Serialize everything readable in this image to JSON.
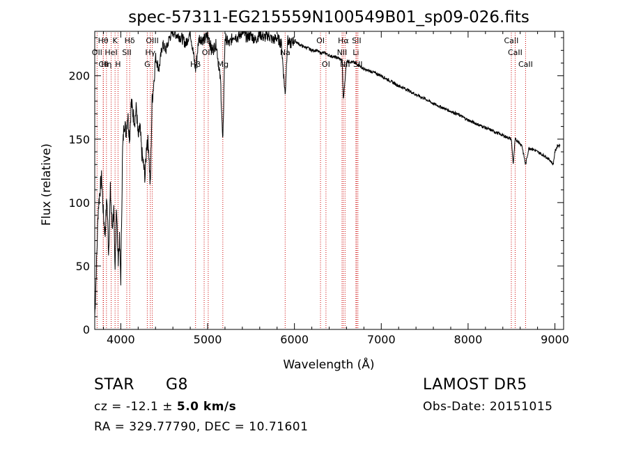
{
  "chart_data": {
    "type": "line",
    "title": "spec-57311-EG215559N100549B01_sp09-026.fits",
    "xlabel": "Wavelength (Å)",
    "ylabel": "Flux (relative)",
    "xlim": [
      3700,
      9100
    ],
    "ylim": [
      0,
      235
    ],
    "xticks": [
      4000,
      5000,
      6000,
      7000,
      8000,
      9000
    ],
    "yticks": [
      0,
      50,
      100,
      150,
      200
    ],
    "grid": false,
    "line_color": "#000000",
    "marker_color": "#cc0000",
    "spectrum": {
      "x": [
        3700,
        3720,
        3740,
        3760,
        3780,
        3800,
        3820,
        3840,
        3860,
        3880,
        3900,
        3920,
        3933,
        3950,
        3968,
        3985,
        4000,
        4020,
        4040,
        4060,
        4080,
        4102,
        4120,
        4140,
        4160,
        4180,
        4200,
        4220,
        4240,
        4260,
        4280,
        4300,
        4320,
        4340,
        4360,
        4380,
        4400,
        4440,
        4480,
        4520,
        4560,
        4600,
        4650,
        4700,
        4750,
        4800,
        4861,
        4900,
        4950,
        5000,
        5050,
        5100,
        5150,
        5175,
        5200,
        5250,
        5300,
        5350,
        5400,
        5450,
        5500,
        5550,
        5600,
        5650,
        5700,
        5750,
        5800,
        5850,
        5893,
        5920,
        5950,
        6000,
        6050,
        6100,
        6150,
        6200,
        6250,
        6300,
        6350,
        6400,
        6450,
        6500,
        6550,
        6563,
        6600,
        6650,
        6700,
        6750,
        6800,
        6900,
        7000,
        7100,
        7200,
        7300,
        7400,
        7500,
        7600,
        7700,
        7800,
        7900,
        8000,
        8100,
        8200,
        8300,
        8400,
        8498,
        8520,
        8542,
        8580,
        8620,
        8662,
        8700,
        8750,
        8800,
        8850,
        8900,
        8950,
        8980,
        9000,
        9030,
        9060
      ],
      "y": [
        10,
        50,
        95,
        110,
        120,
        90,
        75,
        105,
        60,
        110,
        80,
        95,
        40,
        100,
        55,
        70,
        40,
        140,
        165,
        155,
        170,
        150,
        180,
        170,
        165,
        175,
        150,
        160,
        140,
        130,
        120,
        150,
        145,
        110,
        180,
        195,
        215,
        205,
        225,
        220,
        230,
        235,
        232,
        230,
        225,
        235,
        205,
        230,
        228,
        232,
        220,
        225,
        195,
        145,
        230,
        225,
        232,
        230,
        235,
        230,
        232,
        228,
        233,
        230,
        232,
        228,
        230,
        225,
        185,
        228,
        225,
        228,
        225,
        223,
        222,
        220,
        220,
        218,
        218,
        216,
        215,
        214,
        212,
        180,
        212,
        211,
        210,
        208,
        205,
        203,
        200,
        196,
        192,
        189,
        185,
        182,
        178,
        175,
        172,
        169,
        165,
        162,
        159,
        156,
        153,
        150,
        130,
        150,
        148,
        145,
        130,
        143,
        142,
        140,
        138,
        136,
        133,
        130,
        140,
        145,
        145
      ]
    },
    "line_markers": [
      {
        "name": "H&#952;",
        "x": 3797,
        "row": 0
      },
      {
        "name": "K",
        "x": 3934,
        "row": 0
      },
      {
        "name": "H&#948;",
        "x": 4102,
        "row": 0
      },
      {
        "name": "OII",
        "x": 3727,
        "row": 1
      },
      {
        "name": "HeI",
        "x": 3889,
        "row": 1
      },
      {
        "name": "SII",
        "x": 4069,
        "row": 1
      },
      {
        "name": "OIII",
        "x": 4363,
        "row": 0
      },
      {
        "name": "H&#947;",
        "x": 4340,
        "row": 1
      },
      {
        "name": "G",
        "x": 4305,
        "row": 2
      },
      {
        "name": "CII",
        "x": 3800,
        "row": 2
      },
      {
        "name": "H&#951;",
        "x": 3835,
        "row": 2
      },
      {
        "name": "H",
        "x": 3968,
        "row": 2
      },
      {
        "name": "OIII",
        "x": 4960,
        "row": 0
      },
      {
        "name": "OIII",
        "x": 5007,
        "row": 1
      },
      {
        "name": "H&#946;",
        "x": 4861,
        "row": 2
      },
      {
        "name": "Mg",
        "x": 5175,
        "row": 2
      },
      {
        "name": "Na",
        "x": 5893,
        "row": 1
      },
      {
        "name": "OI",
        "x": 6300,
        "row": 0
      },
      {
        "name": "OI",
        "x": 6363,
        "row": 2
      },
      {
        "name": "H&#945;",
        "x": 6563,
        "row": 0
      },
      {
        "name": "SII",
        "x": 6716,
        "row": 0
      },
      {
        "name": "NII",
        "x": 6548,
        "row": 1
      },
      {
        "name": "Li",
        "x": 6708,
        "row": 1
      },
      {
        "name": "NII",
        "x": 6583,
        "row": 2
      },
      {
        "name": "SII",
        "x": 6731,
        "row": 2
      },
      {
        "name": "CaII",
        "x": 8498,
        "row": 0
      },
      {
        "name": "CaII",
        "x": 8542,
        "row": 1
      },
      {
        "name": "CaII",
        "x": 8662,
        "row": 2
      }
    ]
  },
  "info": {
    "object_type": "STAR",
    "subclass": "G8",
    "survey": "LAMOST DR5",
    "cz_prefix": "cz = -12.1 ± ",
    "cz_value": "5.0 km/s",
    "obs_date": "Obs-Date: 20151015",
    "coords": "RA = 329.77790, DEC =  10.71601"
  }
}
